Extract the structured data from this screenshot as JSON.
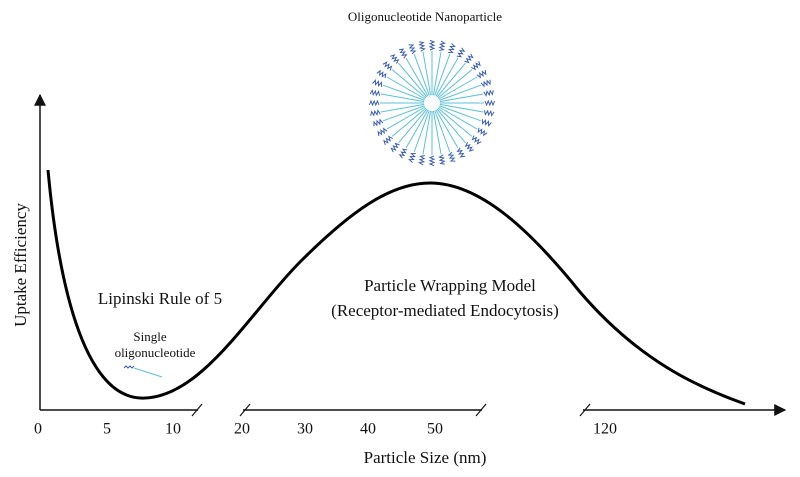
{
  "title": "Oligonucleotide Nanoparticle",
  "axes": {
    "y_label": "Uptake Efficiency",
    "x_label": "Particle Size (nm)",
    "x_tick_labels": [
      "0",
      "5",
      "10",
      "20",
      "30",
      "40",
      "50",
      "120"
    ]
  },
  "annotations": {
    "lipinski": "Lipinski Rule of 5",
    "single": [
      "Single",
      "oligonucleotide"
    ],
    "wrapping": [
      "Particle Wrapping Model",
      "(Receptor-mediated Endocytosis)"
    ]
  }
}
